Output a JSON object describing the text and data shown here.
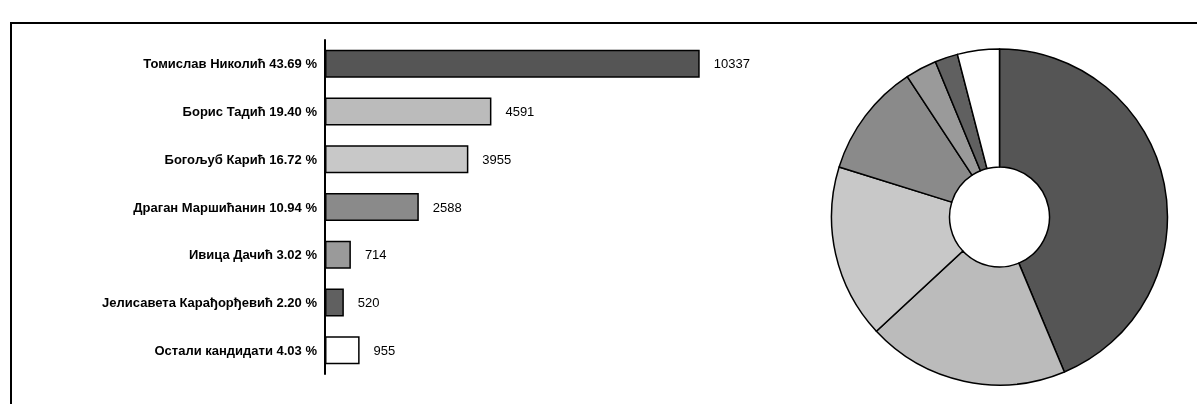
{
  "chart_data": [
    {
      "type": "bar",
      "orientation": "horizontal",
      "categories": [
        "Томислав Николић 43.69 %",
        "Борис Тадић 19.40 %",
        "Богољуб Карић 16.72 %",
        "Драган Маршићанин 10.94 %",
        "Ивица Дачић 3.02 %",
        "Јелисавета Карађорђевић 2.20 %",
        "Остали кандидати 4.03 %"
      ],
      "values": [
        10337,
        4591,
        3955,
        2588,
        714,
        520,
        955
      ],
      "colors": [
        "#555555",
        "#bbbbbb",
        "#c8c8c8",
        "#8a8a8a",
        "#9a9a9a",
        "#606060",
        "#ffffff"
      ],
      "data_labels": true
    },
    {
      "type": "donut",
      "categories": [
        null,
        null,
        null,
        null,
        null,
        null,
        null
      ],
      "values": [
        43.69,
        19.4,
        16.72,
        10.94,
        3.02,
        2.2,
        4.03
      ],
      "colors": [
        "#555555",
        "#bbbbbb",
        "#c8c8c8",
        "#8a8a8a",
        "#9a9a9a",
        "#606060",
        "#ffffff"
      ]
    }
  ]
}
